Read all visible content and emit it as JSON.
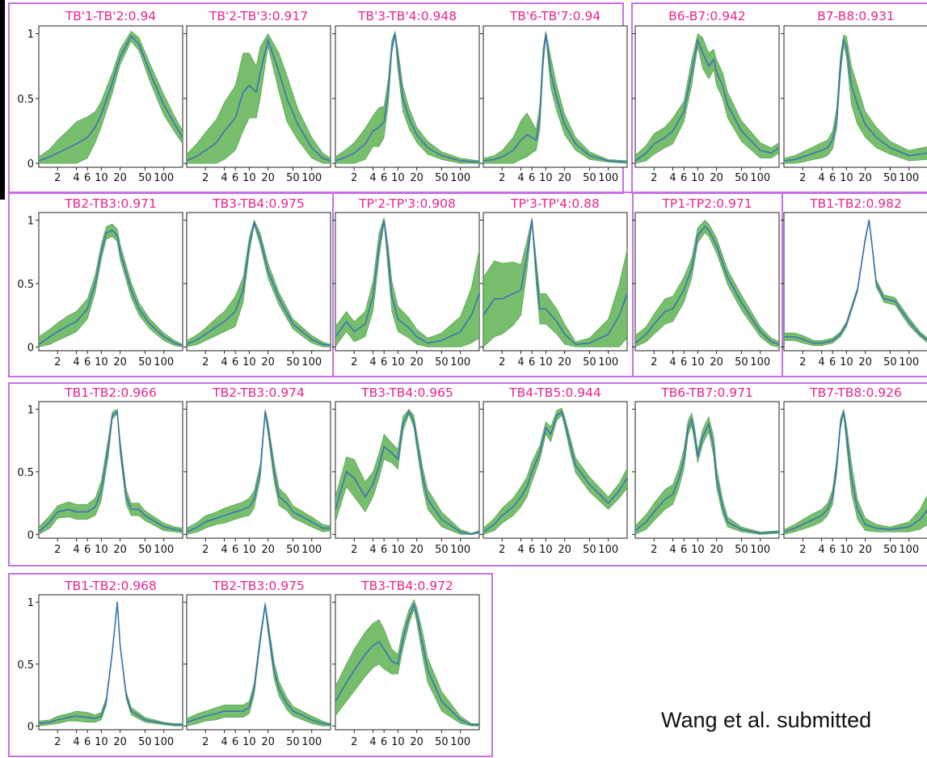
{
  "credit": "Wang et al. submitted",
  "style": {
    "title_color": "#e8238f",
    "box_color": "#c86ee8",
    "band_color": "#6ab860",
    "line_color": "#3b72b5"
  },
  "axes": {
    "yticks": [
      0,
      0.5,
      1
    ],
    "ytick_labels": [
      "0",
      "0.5",
      "1"
    ],
    "xticks": [
      2,
      4,
      6,
      10,
      20,
      50,
      100
    ],
    "xtick_labels": [
      "2",
      "4",
      "6",
      "10",
      "20",
      "50",
      "100"
    ],
    "xlim": [
      1,
      200
    ],
    "ylim": [
      0,
      1
    ]
  },
  "chart_data": [
    {
      "type": "area",
      "title": "TB'1-TB'2:0.94",
      "x": [
        1,
        1.5,
        2,
        3,
        4,
        6,
        8,
        10,
        15,
        20,
        30,
        40,
        60,
        100,
        150,
        200
      ],
      "y": [
        0.02,
        0.05,
        0.08,
        0.12,
        0.15,
        0.2,
        0.28,
        0.38,
        0.62,
        0.82,
        0.98,
        0.92,
        0.7,
        0.45,
        0.3,
        0.2
      ],
      "band": [
        0.03,
        0.06,
        0.1,
        0.14,
        0.17,
        0.16,
        0.12,
        0.1,
        0.08,
        0.06,
        0.04,
        0.05,
        0.07,
        0.08,
        0.06,
        0.05
      ]
    },
    {
      "type": "area",
      "title": "TB'2-TB'3:0.917",
      "x": [
        1,
        1.5,
        2,
        3,
        4,
        6,
        8,
        10,
        13,
        15,
        20,
        30,
        40,
        60,
        100,
        150,
        200
      ],
      "y": [
        0.02,
        0.06,
        0.1,
        0.16,
        0.25,
        0.35,
        0.55,
        0.6,
        0.55,
        0.7,
        0.95,
        0.7,
        0.5,
        0.3,
        0.12,
        0.04,
        0.02
      ],
      "band": [
        0.05,
        0.1,
        0.14,
        0.18,
        0.22,
        0.25,
        0.3,
        0.25,
        0.2,
        0.2,
        0.05,
        0.15,
        0.18,
        0.12,
        0.08,
        0.04,
        0.02
      ]
    },
    {
      "type": "area",
      "title": "TB'3-TB'4:0.948",
      "x": [
        1,
        1.5,
        2,
        3,
        4,
        5,
        6,
        7,
        8,
        9,
        10,
        12,
        15,
        20,
        30,
        50,
        100,
        200
      ],
      "y": [
        0.02,
        0.05,
        0.08,
        0.15,
        0.25,
        0.28,
        0.32,
        0.55,
        0.9,
        1.0,
        0.8,
        0.5,
        0.35,
        0.22,
        0.12,
        0.06,
        0.02,
        0.01
      ],
      "band": [
        0.03,
        0.06,
        0.08,
        0.12,
        0.12,
        0.15,
        0.12,
        0.1,
        0.05,
        0.02,
        0.08,
        0.1,
        0.08,
        0.06,
        0.05,
        0.03,
        0.02,
        0.01
      ]
    },
    {
      "type": "area",
      "title": "TB'6-TB'7:0.94",
      "x": [
        1,
        1.5,
        2,
        3,
        4,
        5,
        6,
        7,
        8,
        9,
        10,
        12,
        15,
        20,
        30,
        50,
        100,
        200
      ],
      "y": [
        0.02,
        0.03,
        0.05,
        0.1,
        0.18,
        0.22,
        0.2,
        0.18,
        0.35,
        0.8,
        1.0,
        0.7,
        0.5,
        0.3,
        0.15,
        0.06,
        0.02,
        0.01
      ],
      "band": [
        0.02,
        0.03,
        0.05,
        0.1,
        0.15,
        0.17,
        0.12,
        0.08,
        0.1,
        0.08,
        0.02,
        0.12,
        0.1,
        0.08,
        0.05,
        0.03,
        0.01,
        0.01
      ]
    },
    {
      "type": "area",
      "title": "B6-B7:0.942",
      "x": [
        1,
        1.5,
        2,
        3,
        4,
        6,
        8,
        10,
        12,
        15,
        18,
        20,
        25,
        30,
        50,
        100,
        150,
        200
      ],
      "y": [
        0.02,
        0.08,
        0.15,
        0.2,
        0.25,
        0.4,
        0.7,
        0.95,
        0.85,
        0.75,
        0.8,
        0.7,
        0.6,
        0.45,
        0.25,
        0.1,
        0.08,
        0.12
      ],
      "band": [
        0.04,
        0.06,
        0.08,
        0.08,
        0.1,
        0.08,
        0.1,
        0.05,
        0.12,
        0.1,
        0.08,
        0.1,
        0.1,
        0.1,
        0.08,
        0.06,
        0.04,
        0.04
      ]
    },
    {
      "type": "area",
      "title": "B7-B8:0.931",
      "x": [
        1,
        1.5,
        2,
        3,
        4,
        5,
        6,
        7,
        8,
        9,
        10,
        12,
        15,
        20,
        30,
        50,
        100,
        200
      ],
      "y": [
        0.02,
        0.03,
        0.05,
        0.08,
        0.1,
        0.12,
        0.18,
        0.35,
        0.75,
        0.95,
        0.9,
        0.6,
        0.45,
        0.3,
        0.2,
        0.12,
        0.06,
        0.08
      ],
      "band": [
        0.02,
        0.03,
        0.04,
        0.05,
        0.06,
        0.06,
        0.07,
        0.08,
        0.08,
        0.04,
        0.08,
        0.15,
        0.15,
        0.1,
        0.08,
        0.05,
        0.04,
        0.05
      ]
    },
    {
      "type": "area",
      "title": "TB2-TB3:0.971",
      "x": [
        1,
        1.5,
        2,
        3,
        4,
        6,
        8,
        10,
        12,
        15,
        18,
        20,
        30,
        40,
        60,
        100,
        150,
        200
      ],
      "y": [
        0.02,
        0.08,
        0.12,
        0.17,
        0.2,
        0.3,
        0.5,
        0.75,
        0.9,
        0.92,
        0.88,
        0.75,
        0.45,
        0.3,
        0.18,
        0.08,
        0.03,
        0.01
      ],
      "band": [
        0.06,
        0.06,
        0.07,
        0.08,
        0.08,
        0.08,
        0.07,
        0.06,
        0.05,
        0.05,
        0.05,
        0.06,
        0.06,
        0.05,
        0.04,
        0.03,
        0.02,
        0.01
      ]
    },
    {
      "type": "area",
      "title": "TB3-TB4:0.975",
      "x": [
        1,
        1.5,
        2,
        3,
        4,
        6,
        8,
        10,
        12,
        15,
        20,
        30,
        50,
        100,
        150,
        200
      ],
      "y": [
        0.02,
        0.06,
        0.1,
        0.16,
        0.2,
        0.28,
        0.45,
        0.8,
        0.98,
        0.85,
        0.6,
        0.38,
        0.18,
        0.06,
        0.02,
        0.01
      ],
      "band": [
        0.03,
        0.04,
        0.05,
        0.07,
        0.08,
        0.12,
        0.1,
        0.06,
        0.02,
        0.05,
        0.06,
        0.05,
        0.04,
        0.03,
        0.02,
        0.01
      ]
    },
    {
      "type": "area",
      "title": "TP'2-TP'3:0.908",
      "x": [
        1,
        1.5,
        2,
        3,
        4,
        5,
        6,
        7,
        8,
        10,
        15,
        20,
        30,
        50,
        100,
        150,
        200
      ],
      "y": [
        0.08,
        0.2,
        0.12,
        0.18,
        0.4,
        0.8,
        1.0,
        0.7,
        0.4,
        0.22,
        0.15,
        0.08,
        0.03,
        0.05,
        0.12,
        0.25,
        0.42
      ],
      "band": [
        0.08,
        0.08,
        0.08,
        0.1,
        0.12,
        0.1,
        0.02,
        0.1,
        0.12,
        0.1,
        0.08,
        0.06,
        0.04,
        0.06,
        0.12,
        0.22,
        0.35
      ]
    },
    {
      "type": "area",
      "title": "TP'3-TP'4:0.88",
      "x": [
        1,
        1.5,
        2,
        3,
        4,
        5,
        6,
        7,
        8,
        10,
        15,
        20,
        30,
        50,
        100,
        150,
        200
      ],
      "y": [
        0.25,
        0.38,
        0.38,
        0.42,
        0.45,
        0.72,
        1.0,
        0.6,
        0.3,
        0.3,
        0.2,
        0.1,
        0.02,
        0.03,
        0.1,
        0.25,
        0.42
      ],
      "band": [
        0.3,
        0.3,
        0.28,
        0.25,
        0.2,
        0.12,
        0.02,
        0.1,
        0.12,
        0.12,
        0.1,
        0.08,
        0.02,
        0.04,
        0.12,
        0.25,
        0.35
      ]
    },
    {
      "type": "area",
      "title": "TP1-TP2:0.971",
      "x": [
        1,
        1.5,
        2,
        3,
        4,
        6,
        8,
        10,
        13,
        15,
        20,
        30,
        50,
        100,
        150,
        200
      ],
      "y": [
        0.03,
        0.1,
        0.18,
        0.28,
        0.3,
        0.45,
        0.62,
        0.88,
        0.95,
        0.92,
        0.8,
        0.55,
        0.35,
        0.12,
        0.04,
        0.02
      ],
      "band": [
        0.06,
        0.06,
        0.08,
        0.1,
        0.1,
        0.1,
        0.08,
        0.06,
        0.05,
        0.05,
        0.06,
        0.06,
        0.06,
        0.04,
        0.03,
        0.02
      ]
    },
    {
      "type": "area",
      "title": "TB1-TB2:0.982",
      "x": [
        1,
        1.5,
        2,
        3,
        4,
        6,
        8,
        10,
        15,
        20,
        23,
        25,
        30,
        40,
        60,
        100,
        150,
        200
      ],
      "y": [
        0.08,
        0.08,
        0.06,
        0.03,
        0.03,
        0.05,
        0.1,
        0.18,
        0.45,
        0.85,
        1.0,
        0.85,
        0.5,
        0.38,
        0.36,
        0.2,
        0.1,
        0.05
      ],
      "band": [
        0.03,
        0.03,
        0.03,
        0.02,
        0.02,
        0.02,
        0.02,
        0.02,
        0.02,
        0.02,
        0.01,
        0.02,
        0.03,
        0.03,
        0.03,
        0.03,
        0.02,
        0.02
      ]
    },
    {
      "type": "area",
      "title": "TB1-TB2:0.966",
      "x": [
        1,
        1.5,
        2,
        3,
        4,
        6,
        8,
        10,
        13,
        15,
        18,
        20,
        25,
        30,
        40,
        50,
        100,
        150,
        200
      ],
      "y": [
        0.02,
        0.1,
        0.18,
        0.2,
        0.18,
        0.18,
        0.22,
        0.35,
        0.7,
        0.95,
        0.98,
        0.7,
        0.3,
        0.2,
        0.2,
        0.15,
        0.06,
        0.04,
        0.03
      ],
      "band": [
        0.04,
        0.05,
        0.05,
        0.06,
        0.06,
        0.06,
        0.07,
        0.08,
        0.07,
        0.03,
        0.02,
        0.06,
        0.06,
        0.05,
        0.05,
        0.04,
        0.03,
        0.02,
        0.02
      ]
    },
    {
      "type": "area",
      "title": "TB2-TB3:0.974",
      "x": [
        1,
        1.5,
        2,
        3,
        4,
        6,
        8,
        10,
        12,
        15,
        18,
        20,
        25,
        30,
        40,
        50,
        100,
        150,
        200
      ],
      "y": [
        0.02,
        0.06,
        0.1,
        0.13,
        0.15,
        0.18,
        0.2,
        0.22,
        0.28,
        0.5,
        0.98,
        0.85,
        0.5,
        0.3,
        0.25,
        0.18,
        0.1,
        0.05,
        0.05
      ],
      "band": [
        0.03,
        0.04,
        0.05,
        0.05,
        0.06,
        0.06,
        0.06,
        0.07,
        0.07,
        0.06,
        0.02,
        0.05,
        0.08,
        0.07,
        0.06,
        0.05,
        0.04,
        0.03,
        0.02
      ]
    },
    {
      "type": "area",
      "title": "TB3-TB4:0.965",
      "x": [
        1,
        1.5,
        2,
        3,
        4,
        5,
        6,
        8,
        10,
        12,
        15,
        18,
        20,
        25,
        30,
        50,
        100,
        150,
        200
      ],
      "y": [
        0.2,
        0.5,
        0.45,
        0.3,
        0.4,
        0.55,
        0.7,
        0.65,
        0.6,
        0.88,
        0.98,
        0.9,
        0.75,
        0.45,
        0.28,
        0.12,
        0.02,
        0.0,
        0.02
      ],
      "band": [
        0.1,
        0.12,
        0.15,
        0.12,
        0.1,
        0.1,
        0.1,
        0.08,
        0.08,
        0.06,
        0.02,
        0.05,
        0.06,
        0.08,
        0.08,
        0.06,
        0.02,
        0.01,
        0.01
      ]
    },
    {
      "type": "area",
      "title": "TB4-TB5:0.944",
      "x": [
        1,
        1.5,
        2,
        3,
        4,
        5,
        6,
        8,
        10,
        12,
        15,
        18,
        20,
        25,
        30,
        50,
        100,
        150,
        200
      ],
      "y": [
        0.02,
        0.08,
        0.15,
        0.22,
        0.3,
        0.38,
        0.5,
        0.65,
        0.85,
        0.8,
        0.95,
        0.98,
        0.9,
        0.7,
        0.55,
        0.4,
        0.25,
        0.35,
        0.45
      ],
      "band": [
        0.03,
        0.05,
        0.06,
        0.07,
        0.08,
        0.08,
        0.08,
        0.06,
        0.05,
        0.06,
        0.04,
        0.03,
        0.04,
        0.06,
        0.06,
        0.06,
        0.05,
        0.06,
        0.08
      ]
    },
    {
      "type": "area",
      "title": "TB6-TB7:0.971",
      "x": [
        1,
        1.5,
        2,
        3,
        4,
        5,
        6,
        7,
        8,
        9,
        10,
        12,
        15,
        18,
        20,
        25,
        30,
        50,
        100,
        200
      ],
      "y": [
        0.03,
        0.1,
        0.18,
        0.28,
        0.32,
        0.45,
        0.6,
        0.85,
        0.92,
        0.78,
        0.62,
        0.78,
        0.88,
        0.7,
        0.45,
        0.22,
        0.1,
        0.04,
        0.01,
        0.02
      ],
      "band": [
        0.04,
        0.06,
        0.07,
        0.08,
        0.08,
        0.08,
        0.08,
        0.06,
        0.05,
        0.06,
        0.05,
        0.06,
        0.06,
        0.08,
        0.08,
        0.06,
        0.04,
        0.02,
        0.01,
        0.01
      ]
    },
    {
      "type": "area",
      "title": "TB7-TB8:0.926",
      "x": [
        1,
        1.5,
        2,
        3,
        4,
        5,
        6,
        7,
        8,
        9,
        10,
        12,
        15,
        20,
        30,
        50,
        100,
        150,
        200
      ],
      "y": [
        0.02,
        0.05,
        0.08,
        0.12,
        0.15,
        0.2,
        0.3,
        0.55,
        0.88,
        0.98,
        0.8,
        0.45,
        0.2,
        0.08,
        0.05,
        0.04,
        0.06,
        0.12,
        0.2
      ],
      "band": [
        0.02,
        0.03,
        0.04,
        0.05,
        0.05,
        0.05,
        0.06,
        0.06,
        0.04,
        0.02,
        0.08,
        0.12,
        0.08,
        0.05,
        0.03,
        0.02,
        0.04,
        0.08,
        0.12
      ]
    },
    {
      "type": "area",
      "title": "TB1-TB2:0.968",
      "x": [
        1,
        1.5,
        2,
        3,
        4,
        6,
        8,
        10,
        12,
        15,
        18,
        20,
        25,
        30,
        50,
        100,
        150,
        200
      ],
      "y": [
        0.02,
        0.03,
        0.05,
        0.07,
        0.08,
        0.07,
        0.06,
        0.08,
        0.2,
        0.6,
        1.0,
        0.65,
        0.25,
        0.12,
        0.05,
        0.02,
        0.01,
        0.01
      ],
      "band": [
        0.02,
        0.02,
        0.03,
        0.03,
        0.04,
        0.04,
        0.03,
        0.03,
        0.03,
        0.02,
        0.01,
        0.02,
        0.03,
        0.03,
        0.02,
        0.01,
        0.01,
        0.01
      ]
    },
    {
      "type": "area",
      "title": "TB2-TB3:0.975",
      "x": [
        1,
        1.5,
        2,
        3,
        4,
        6,
        8,
        10,
        12,
        15,
        18,
        20,
        25,
        30,
        40,
        50,
        100,
        150,
        200
      ],
      "y": [
        0.03,
        0.06,
        0.08,
        0.1,
        0.12,
        0.12,
        0.12,
        0.15,
        0.3,
        0.7,
        0.98,
        0.8,
        0.45,
        0.3,
        0.18,
        0.12,
        0.05,
        0.02,
        0.01
      ],
      "band": [
        0.03,
        0.04,
        0.04,
        0.05,
        0.05,
        0.05,
        0.05,
        0.05,
        0.05,
        0.04,
        0.02,
        0.05,
        0.07,
        0.06,
        0.05,
        0.04,
        0.03,
        0.02,
        0.01
      ]
    },
    {
      "type": "area",
      "title": "TB3-TB4:0.972",
      "x": [
        1,
        1.5,
        2,
        3,
        4,
        5,
        6,
        8,
        10,
        12,
        15,
        18,
        20,
        25,
        30,
        50,
        100,
        150,
        200
      ],
      "y": [
        0.2,
        0.35,
        0.45,
        0.58,
        0.65,
        0.68,
        0.62,
        0.52,
        0.5,
        0.7,
        0.88,
        0.98,
        0.9,
        0.65,
        0.45,
        0.2,
        0.05,
        0.01,
        0.01
      ],
      "band": [
        0.12,
        0.15,
        0.17,
        0.18,
        0.18,
        0.18,
        0.16,
        0.1,
        0.08,
        0.08,
        0.06,
        0.04,
        0.06,
        0.1,
        0.1,
        0.08,
        0.03,
        0.01,
        0.01
      ]
    }
  ]
}
